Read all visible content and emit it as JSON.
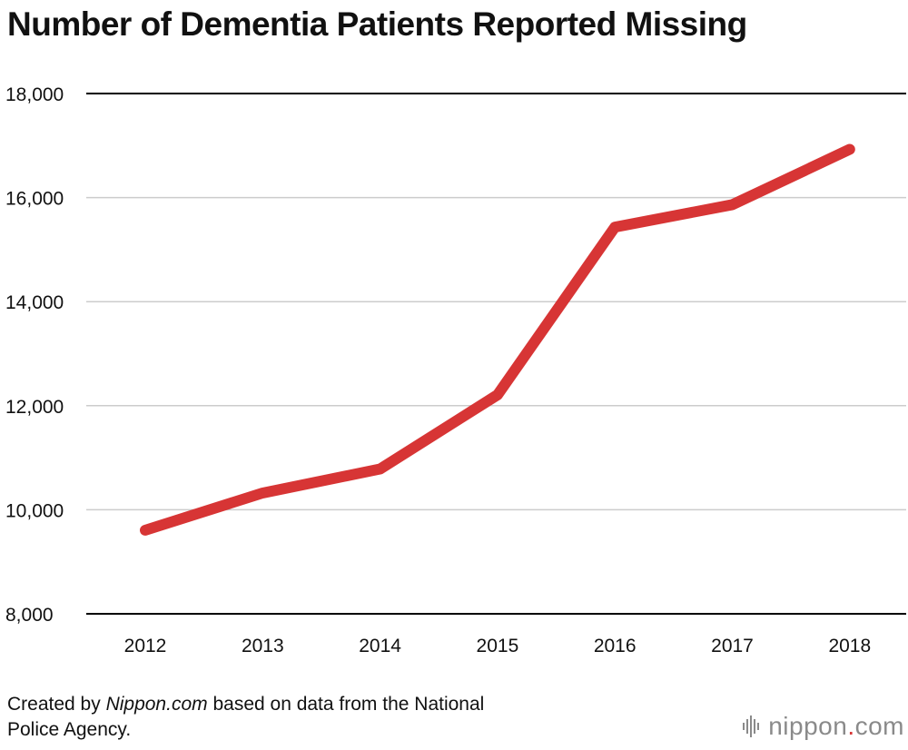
{
  "title": "Number of Dementia Patients Reported Missing",
  "source": {
    "prefix": "Created by ",
    "site": "Nippon.com",
    "suffix_line1": " based on data from the National",
    "line2": "Police Agency."
  },
  "brand": {
    "name": "nippon",
    "dot": ".",
    "tld": "com",
    "icon": "sound-wave-icon",
    "accent": "#d73535"
  },
  "colors": {
    "line": "#d73535",
    "axis": "#000000",
    "grid": "#cccccc"
  },
  "chart_data": {
    "type": "line",
    "title": "Number of Dementia Patients Reported Missing",
    "xlabel": "",
    "ylabel": "",
    "categories": [
      "2012",
      "2013",
      "2014",
      "2015",
      "2016",
      "2017",
      "2018"
    ],
    "series": [
      {
        "values": [
          9607,
          10322,
          10783,
          12208,
          15432,
          15863,
          16927
        ]
      }
    ],
    "ylim": [
      8000,
      18000
    ],
    "yticks": [
      8000,
      10000,
      12000,
      14000,
      16000,
      18000
    ],
    "ytick_labels": [
      "8,000",
      "10,000",
      "12,000",
      "14,000",
      "16,000",
      "18,000"
    ],
    "grid": true,
    "legend": "none"
  }
}
